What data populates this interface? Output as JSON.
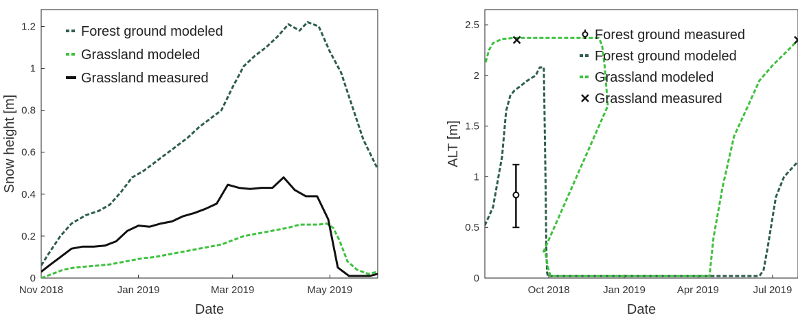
{
  "chart_data": [
    {
      "type": "line",
      "xlabel": "Date",
      "ylabel": "Snow height [m]",
      "xlim": [
        "2018-11-01",
        "2019-05-31"
      ],
      "ylim": [
        0,
        1.28
      ],
      "xticks": [
        {
          "value": "2018-11-01",
          "label": "Nov 2018"
        },
        {
          "value": "2019-01-01",
          "label": "Jan 2019"
        },
        {
          "value": "2019-03-01",
          "label": "Mar 2019"
        },
        {
          "value": "2019-05-01",
          "label": "May 2019"
        }
      ],
      "yticks": [
        0,
        0.2,
        0.4,
        0.6,
        0.8,
        1,
        1.2
      ],
      "ytick_labels": [
        "0",
        "0.2",
        "0.4",
        "0.6",
        "0.8",
        "1",
        "1.2"
      ],
      "legend_position": "top-left",
      "series": [
        {
          "name": "Forest ground modeled",
          "color": "#2e5e4a",
          "style": "dashed",
          "x": [
            "2018-11-01",
            "2018-11-06",
            "2018-11-13",
            "2018-11-20",
            "2018-11-29",
            "2018-12-07",
            "2018-12-14",
            "2018-12-21",
            "2018-12-28",
            "2019-01-04",
            "2019-01-11",
            "2019-01-18",
            "2019-01-25",
            "2019-02-01",
            "2019-02-08",
            "2019-02-15",
            "2019-02-22",
            "2019-03-01",
            "2019-03-08",
            "2019-03-15",
            "2019-03-22",
            "2019-03-29",
            "2019-04-05",
            "2019-04-12",
            "2019-04-17",
            "2019-04-24",
            "2019-05-01",
            "2019-05-08",
            "2019-05-15",
            "2019-05-22",
            "2019-05-31"
          ],
          "y": [
            0.06,
            0.12,
            0.2,
            0.26,
            0.3,
            0.32,
            0.35,
            0.41,
            0.48,
            0.51,
            0.55,
            0.59,
            0.63,
            0.67,
            0.72,
            0.76,
            0.8,
            0.91,
            1.01,
            1.06,
            1.1,
            1.15,
            1.21,
            1.18,
            1.22,
            1.2,
            1.08,
            0.98,
            0.82,
            0.66,
            0.52
          ]
        },
        {
          "name": "Grassland modeled",
          "color": "#3ec13e",
          "style": "dashed",
          "x": [
            "2018-11-01",
            "2018-11-08",
            "2018-11-15",
            "2018-11-22",
            "2018-11-29",
            "2018-12-07",
            "2018-12-14",
            "2018-12-21",
            "2018-12-28",
            "2019-01-04",
            "2019-01-11",
            "2019-01-18",
            "2019-01-25",
            "2019-02-01",
            "2019-02-08",
            "2019-02-15",
            "2019-02-22",
            "2019-03-01",
            "2019-03-08",
            "2019-03-15",
            "2019-03-22",
            "2019-03-29",
            "2019-04-05",
            "2019-04-12",
            "2019-04-19",
            "2019-04-24",
            "2019-04-29",
            "2019-05-03",
            "2019-05-07",
            "2019-05-12",
            "2019-05-18",
            "2019-05-25",
            "2019-05-31"
          ],
          "y": [
            0.0,
            0.02,
            0.04,
            0.05,
            0.055,
            0.06,
            0.065,
            0.075,
            0.085,
            0.095,
            0.1,
            0.11,
            0.12,
            0.13,
            0.14,
            0.15,
            0.16,
            0.18,
            0.2,
            0.21,
            0.22,
            0.23,
            0.24,
            0.255,
            0.255,
            0.255,
            0.26,
            0.24,
            0.18,
            0.08,
            0.04,
            0.02,
            0.03
          ]
        },
        {
          "name": "Grassland measured",
          "color": "#111111",
          "style": "solid",
          "x": [
            "2018-11-01",
            "2018-11-06",
            "2018-11-13",
            "2018-11-20",
            "2018-11-27",
            "2018-12-04",
            "2018-12-11",
            "2018-12-18",
            "2018-12-25",
            "2019-01-01",
            "2019-01-08",
            "2019-01-15",
            "2019-01-22",
            "2019-01-29",
            "2019-02-05",
            "2019-02-12",
            "2019-02-19",
            "2019-02-26",
            "2019-03-05",
            "2019-03-12",
            "2019-03-19",
            "2019-03-26",
            "2019-04-02",
            "2019-04-09",
            "2019-04-16",
            "2019-04-23",
            "2019-04-30",
            "2019-05-06",
            "2019-05-13",
            "2019-05-20",
            "2019-05-26",
            "2019-05-31"
          ],
          "y": [
            0.03,
            0.06,
            0.1,
            0.14,
            0.15,
            0.15,
            0.155,
            0.175,
            0.225,
            0.25,
            0.245,
            0.26,
            0.27,
            0.295,
            0.31,
            0.33,
            0.355,
            0.445,
            0.43,
            0.425,
            0.43,
            0.43,
            0.48,
            0.42,
            0.39,
            0.39,
            0.28,
            0.05,
            0.01,
            0.01,
            0.01,
            0.02
          ]
        }
      ]
    },
    {
      "type": "line",
      "xlabel": "Date",
      "ylabel": "ALT [m]",
      "xlim": [
        "2018-07-15",
        "2019-08-01"
      ],
      "ylim": [
        0,
        2.65
      ],
      "xticks": [
        {
          "value": "2018-10-01",
          "label": "Oct 2018"
        },
        {
          "value": "2019-01-01",
          "label": "Jan 2019"
        },
        {
          "value": "2019-04-01",
          "label": "Apr 2019"
        },
        {
          "value": "2019-07-01",
          "label": "Jul 2019"
        }
      ],
      "yticks": [
        0,
        0.5,
        1,
        1.5,
        2,
        2.5
      ],
      "ytick_labels": [
        "0",
        "0.5",
        "1",
        "1.5",
        "2",
        "2.5"
      ],
      "legend_position": "top-right",
      "series": [
        {
          "name": "Forest ground measured",
          "color": "#111111",
          "style": "errorbar",
          "points": [
            {
              "x": "2018-08-22",
              "y": 0.82,
              "y_low": 0.5,
              "y_high": 1.12
            }
          ]
        },
        {
          "name": "Forest ground modeled",
          "color": "#2e5e4a",
          "style": "dashed",
          "x": [
            "2018-07-15",
            "2018-07-25",
            "2018-08-05",
            "2018-08-10",
            "2018-08-15",
            "2018-08-20",
            "2018-08-25",
            "2018-09-05",
            "2018-09-15",
            "2018-09-20",
            "2018-09-25",
            "2018-09-27",
            "2018-09-28",
            "2018-09-29",
            "2018-09-30",
            "2019-06-15",
            "2019-06-20",
            "2019-06-25",
            "2019-07-05",
            "2019-07-15",
            "2019-08-01"
          ],
          "y": [
            0.52,
            0.7,
            1.2,
            1.65,
            1.8,
            1.85,
            1.88,
            1.95,
            2.0,
            2.08,
            2.08,
            1.0,
            0.3,
            0.05,
            0.02,
            0.02,
            0.08,
            0.3,
            0.8,
            1.0,
            1.15
          ]
        },
        {
          "name": "Grassland modeled",
          "color": "#3ec13e",
          "style": "dashed",
          "x": [
            "2018-07-16",
            "2018-07-20",
            "2018-07-25",
            "2018-08-05",
            "2018-08-20",
            "2018-09-01",
            "2018-09-15",
            "2018-10-01",
            "2018-10-25",
            "2018-10-28",
            "2018-11-01",
            "2018-11-05",
            "2018-11-10",
            "2018-11-15",
            "2018-11-20",
            "2018-11-25",
            "2018-12-01",
            "2018-12-05",
            "2018-12-08",
            "2018-12-10",
            "2018-12-12",
            "2018-09-24",
            "2018-09-26",
            "2018-09-28",
            "2018-09-30",
            "2018-10-03",
            "2019-04-15",
            "2019-04-20",
            "2019-05-01",
            "2019-05-15",
            "2019-06-01",
            "2019-06-15",
            "2019-07-01",
            "2019-07-20",
            "2019-08-01"
          ],
          "y": [
            2.13,
            2.25,
            2.32,
            2.36,
            2.37,
            2.37,
            2.37,
            2.37,
            2.37,
            2.37,
            2.37,
            2.37,
            2.37,
            2.37,
            2.37,
            2.37,
            2.37,
            2.3,
            2.1,
            1.9,
            1.7,
            0.25,
            0.28,
            0.2,
            0.1,
            0.02,
            0.02,
            0.4,
            0.9,
            1.4,
            1.7,
            1.95,
            2.1,
            2.25,
            2.35
          ]
        },
        {
          "name": "Grassland measured",
          "color": "#111111",
          "style": "marker-x",
          "points": [
            {
              "x": "2018-08-23",
              "y": 2.35
            },
            {
              "x": "2019-08-01",
              "y": 2.35
            }
          ]
        }
      ]
    }
  ]
}
